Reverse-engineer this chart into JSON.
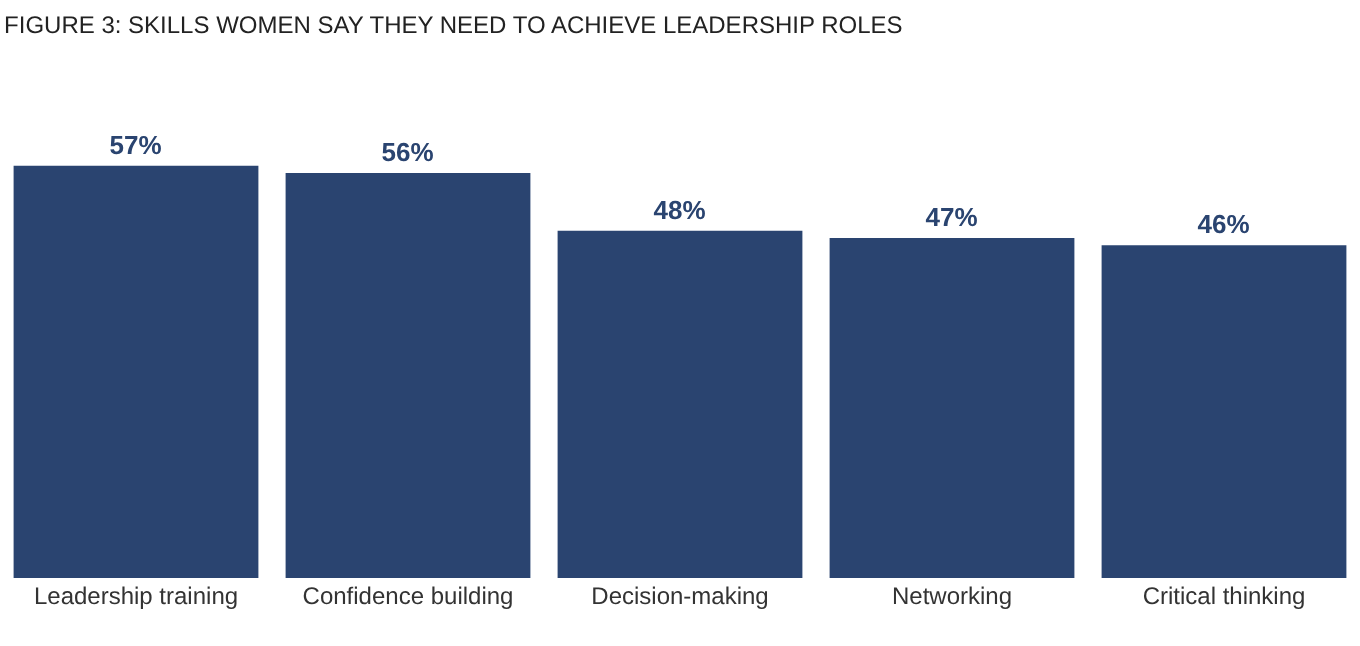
{
  "chart_data": {
    "type": "bar",
    "title": "FIGURE 3: SKILLS WOMEN SAY THEY NEED TO ACHIEVE LEADERSHIP ROLES",
    "categories": [
      "Leadership training",
      "Confidence building",
      "Decision-making",
      "Networking",
      "Critical thinking"
    ],
    "values": [
      57,
      56,
      48,
      47,
      46
    ],
    "value_labels": [
      "57%",
      "56%",
      "48%",
      "47%",
      "46%"
    ],
    "color": "#2a4470",
    "grid": false,
    "legend": false
  }
}
